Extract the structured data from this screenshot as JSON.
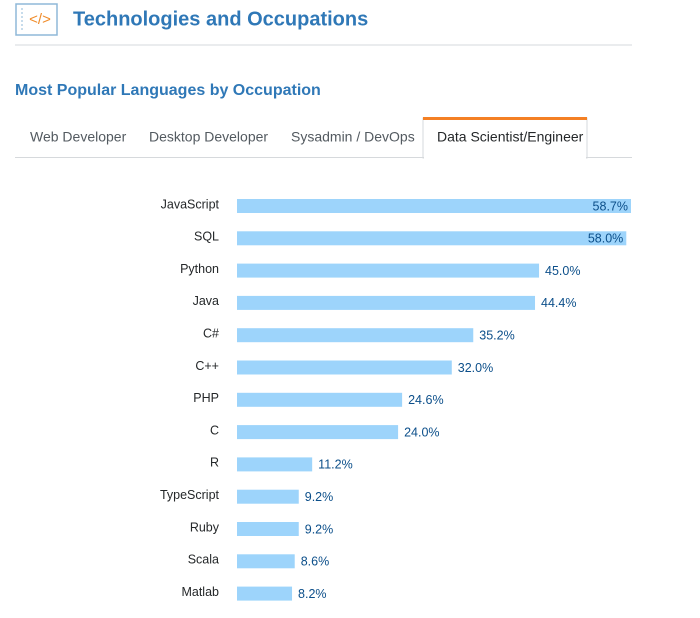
{
  "header": {
    "title": "Technologies and Occupations"
  },
  "tabs": [
    "Web Developer",
    "Desktop Developer",
    "Sysadmin / DevOps",
    "Data Scientist/Engineer"
  ],
  "active_tab": 3,
  "chart_data": {
    "type": "bar",
    "orientation": "horizontal",
    "title": "Most Popular Languages by Occupation",
    "categories": [
      "JavaScript",
      "SQL",
      "Python",
      "Java",
      "C#",
      "C++",
      "PHP",
      "C",
      "R",
      "TypeScript",
      "Ruby",
      "Scala",
      "Matlab"
    ],
    "values": [
      58.7,
      58.0,
      45.0,
      44.4,
      35.2,
      32.0,
      24.6,
      24.0,
      11.2,
      9.2,
      9.2,
      8.6,
      8.2
    ],
    "value_labels": [
      "58.7%",
      "58.0%",
      "45.0%",
      "44.4%",
      "35.2%",
      "32.0%",
      "24.6%",
      "24.0%",
      "11.2%",
      "9.2%",
      "9.2%",
      "8.6%",
      "8.2%"
    ],
    "color": "#9dd4fb"
  }
}
